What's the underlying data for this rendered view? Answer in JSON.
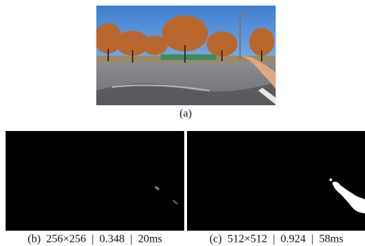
{
  "figure": {
    "photo": {
      "label": "(a)"
    },
    "panels": [
      {
        "caption": "(b)  256×256  |  0.348  |  20ms"
      },
      {
        "caption": "(c)  512×512  |  0.924  |  58ms"
      }
    ]
  }
}
